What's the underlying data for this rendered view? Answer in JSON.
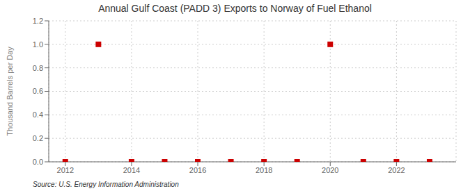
{
  "chart_data": {
    "type": "scatter",
    "title": "Annual Gulf Coast (PADD 3) Exports to Norway of Fuel Ethanol",
    "y_label": "Thousand Barrels per Day",
    "annotations": [
      "Source: U.S. Energy Information Administration"
    ],
    "x": [
      2012,
      2013,
      2014,
      2015,
      2016,
      2017,
      2018,
      2019,
      2020,
      2021,
      2022,
      2023
    ],
    "values": [
      0.0,
      1.0,
      0.0,
      0.0,
      0.0,
      0.0,
      0.0,
      0.0,
      1.0,
      0.0,
      0.0,
      0.0
    ],
    "color": "#cc0000",
    "marker": "square",
    "xlim": [
      2011.5,
      2023.8
    ],
    "ylim": [
      0.0,
      1.2
    ],
    "xticks": [
      2012,
      2014,
      2016,
      2018,
      2020,
      2022
    ],
    "yticks": [
      {
        "value": 0,
        "label": "0.0"
      },
      0.2,
      0.4,
      0.6,
      0.8,
      {
        "value": 1,
        "label": "1.0"
      },
      1.2
    ],
    "grid": true
  }
}
